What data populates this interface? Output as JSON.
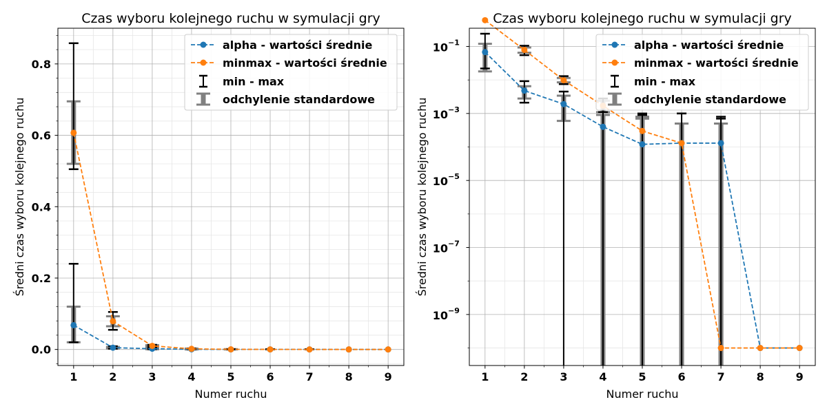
{
  "chart_data": [
    {
      "type": "line",
      "title": "Czas wyboru kolejnego ruchu w symulacji gry",
      "xlabel": "Numer ruchu",
      "ylabel": "Średni czas wyboru kolejnego ruchu",
      "yscale": "linear",
      "xlim": [
        0.6,
        9.4
      ],
      "ylim": [
        -0.045,
        0.9
      ],
      "x": [
        1,
        2,
        3,
        4,
        5,
        6,
        7,
        8,
        9
      ],
      "xticks": [
        "1",
        "2",
        "3",
        "4",
        "5",
        "6",
        "7",
        "8",
        "9"
      ],
      "yticks": [
        0.0,
        0.2,
        0.4,
        0.6,
        0.8
      ],
      "ytick_labels": [
        "0.0",
        "0.2",
        "0.4",
        "0.6",
        "0.8"
      ],
      "grid": "major and minor",
      "legend_position": "top-right",
      "series": [
        {
          "name": "alpha - wartości średnie",
          "color": "#1f77b4",
          "values": [
            0.068,
            0.005,
            0.002,
            0.0004,
            0.00012,
            0.00013,
            0.00013,
            0.0,
            0.0
          ],
          "min": [
            0.02,
            0.002,
            0.0006,
            0.0,
            0.0,
            0.0,
            0.0,
            0.0,
            0.0
          ],
          "max": [
            0.24,
            0.009,
            0.004,
            0.0007,
            0.0003,
            0.0003,
            0.0003,
            0.0,
            0.0
          ],
          "std_low": [
            0.02,
            0.0028,
            0.0006,
            0.0,
            0.0,
            0.0,
            0.0,
            0.0,
            0.0
          ],
          "std_high": [
            0.12,
            0.007,
            0.0034,
            0.0008,
            0.0003,
            0.0003,
            0.0003,
            0.0,
            0.0
          ]
        },
        {
          "name": "minmax - wartości średnie",
          "color": "#ff7f0e",
          "values": [
            0.607,
            0.079,
            0.01,
            0.0017,
            0.0003,
            0.00013,
            0.0,
            0.0,
            0.0
          ],
          "min": [
            0.505,
            0.055,
            0.0075,
            0.0009,
            0.0,
            0.0,
            0.0,
            0.0,
            0.0
          ],
          "max": [
            0.858,
            0.105,
            0.013,
            0.0027,
            0.001,
            0.001,
            0.0008,
            0.0,
            0.0
          ],
          "std_low": [
            0.52,
            0.065,
            0.0085,
            0.0011,
            0.0,
            0.0,
            0.0,
            0.0,
            0.0
          ],
          "std_high": [
            0.695,
            0.093,
            0.012,
            0.0024,
            0.0008,
            0.0005,
            0.0005,
            0.0,
            0.0
          ]
        }
      ],
      "legend": [
        "alpha - wartości średnie",
        "minmax - wartości średnie",
        "min - max",
        "odchylenie standardowe"
      ]
    },
    {
      "type": "line",
      "title": "Czas wyboru kolejnego ruchu w symulacji gry",
      "xlabel": "Numer ruchu",
      "ylabel": "Średni czas wyboru kolejnego ruchu",
      "yscale": "log",
      "xlim": [
        0.6,
        9.4
      ],
      "ylim": [
        3e-11,
        0.35
      ],
      "x": [
        1,
        2,
        3,
        4,
        5,
        6,
        7,
        8,
        9
      ],
      "xticks": [
        "1",
        "2",
        "3",
        "4",
        "5",
        "6",
        "7",
        "8",
        "9"
      ],
      "yticks": [
        1e-09,
        1e-07,
        1e-05,
        0.001,
        0.1
      ],
      "ytick_labels": [
        {
          "base": "10",
          "exp": "−9"
        },
        {
          "base": "10",
          "exp": "−7"
        },
        {
          "base": "10",
          "exp": "−5"
        },
        {
          "base": "10",
          "exp": "−3"
        },
        {
          "base": "10",
          "exp": "−1"
        }
      ],
      "grid": "major and minor",
      "legend_position": "top-right",
      "series": [
        {
          "name": "alpha - wartości średnie",
          "color": "#1f77b4",
          "values": [
            0.068,
            0.0048,
            0.0019,
            0.0004,
            0.00012,
            0.00013,
            0.00013,
            1e-10,
            1e-10
          ],
          "min": [
            0.022,
            0.0021,
            3e-11,
            3e-11,
            3e-11,
            3e-11,
            3e-11,
            1e-10,
            1e-10
          ],
          "max": [
            0.24,
            0.0092,
            0.0045,
            0.0011,
            0.0009,
            0.001,
            0.0007,
            1e-10,
            1e-10
          ],
          "std_low": [
            0.018,
            0.0028,
            0.0006,
            3e-11,
            3e-11,
            3e-11,
            3e-11,
            1e-10,
            1e-10
          ],
          "std_high": [
            0.12,
            0.0065,
            0.0034,
            0.0009,
            0.0007,
            0.0005,
            0.0005,
            1e-10,
            1e-10
          ]
        },
        {
          "name": "minmax - wartości średnie",
          "color": "#ff7f0e",
          "values": [
            0.607,
            0.079,
            0.0098,
            0.0017,
            0.0003,
            0.00013,
            1e-10,
            1e-10,
            1e-10
          ],
          "min": [
            0.5,
            0.055,
            0.0075,
            3e-11,
            3e-11,
            3e-11,
            3e-11,
            1e-10,
            1e-10
          ],
          "max": [
            0.86,
            0.105,
            0.013,
            0.0028,
            0.001,
            0.001,
            0.0008,
            1e-10,
            1e-10
          ],
          "std_low": [
            0.52,
            0.065,
            0.0085,
            0.0011,
            3e-11,
            3e-11,
            3e-11,
            1e-10,
            1e-10
          ],
          "std_high": [
            0.695,
            0.093,
            0.0115,
            0.0024,
            0.0008,
            0.0005,
            0.0005,
            1e-10,
            1e-10
          ]
        }
      ],
      "legend": [
        "alpha - wartości średnie",
        "minmax - wartości średnie",
        "min - max",
        "odchylenie standardowe"
      ]
    }
  ]
}
